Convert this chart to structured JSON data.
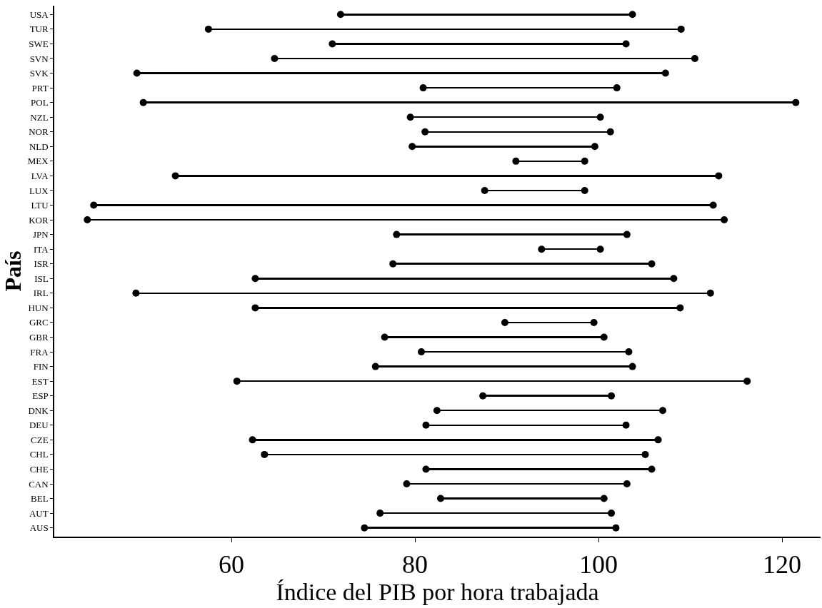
{
  "chart_data": {
    "type": "bar",
    "orientation": "horizontal",
    "xlabel": "Índice del PIB por hora trabajada",
    "ylabel": "País",
    "marker": "circle",
    "grid": false,
    "categories": [
      "USA",
      "TUR",
      "SWE",
      "SVN",
      "SVK",
      "PRT",
      "POL",
      "NZL",
      "NOR",
      "NLD",
      "MEX",
      "LVA",
      "LUX",
      "LTU",
      "KOR",
      "JPN",
      "ITA",
      "ISR",
      "ISL",
      "IRL",
      "HUN",
      "GRC",
      "GBR",
      "FRA",
      "FIN",
      "EST",
      "ESP",
      "DNK",
      "DEU",
      "CZE",
      "CHL",
      "CHE",
      "CAN",
      "BEL",
      "AUT",
      "AUS"
    ],
    "series": [
      {
        "color": "#000000",
        "base": [
          71.9,
          57.5,
          71.0,
          64.7,
          49.7,
          80.9,
          50.4,
          79.5,
          81.1,
          79.7,
          91.0,
          53.9,
          87.6,
          45.0,
          44.3,
          78.0,
          93.8,
          77.6,
          62.6,
          49.6,
          62.6,
          89.8,
          76.7,
          80.7,
          75.7,
          60.6,
          87.4,
          82.4,
          81.2,
          62.3,
          63.6,
          81.2,
          79.1,
          82.8,
          76.2,
          74.5
        ],
        "values": [
          31.8,
          51.5,
          32.0,
          45.8,
          57.6,
          21.1,
          71.1,
          20.7,
          20.2,
          19.9,
          7.5,
          59.2,
          10.9,
          67.5,
          69.4,
          25.1,
          6.4,
          28.2,
          45.6,
          62.6,
          46.3,
          9.7,
          23.9,
          22.6,
          28.0,
          55.6,
          14.0,
          24.6,
          21.8,
          44.2,
          41.5,
          24.6,
          24.0,
          17.8,
          25.2,
          27.4
        ]
      },
      {
        "type": "scatter",
        "color": "#000000",
        "values": [
          71.9,
          57.5,
          71.0,
          64.7,
          49.7,
          80.9,
          50.4,
          79.5,
          81.1,
          79.7,
          91.0,
          53.9,
          87.6,
          45.0,
          44.3,
          78.0,
          93.8,
          77.6,
          62.6,
          49.6,
          62.6,
          89.8,
          76.7,
          80.7,
          75.7,
          60.6,
          87.4,
          82.4,
          81.2,
          62.3,
          63.6,
          81.2,
          79.1,
          82.8,
          76.2,
          74.5
        ]
      },
      {
        "type": "scatter",
        "color": "#000000",
        "values": [
          103.7,
          109.0,
          103.0,
          110.5,
          107.3,
          102.0,
          121.5,
          100.2,
          101.3,
          99.6,
          98.5,
          113.1,
          98.5,
          112.5,
          113.7,
          103.1,
          100.2,
          105.8,
          108.2,
          112.2,
          108.9,
          99.5,
          100.6,
          103.3,
          103.7,
          116.2,
          101.4,
          107.0,
          103.0,
          106.5,
          105.1,
          105.8,
          103.1,
          100.6,
          101.4,
          101.9
        ]
      }
    ],
    "xlim": [
      40.7,
      124.2
    ],
    "xticks": [
      60,
      80,
      100,
      120
    ]
  }
}
